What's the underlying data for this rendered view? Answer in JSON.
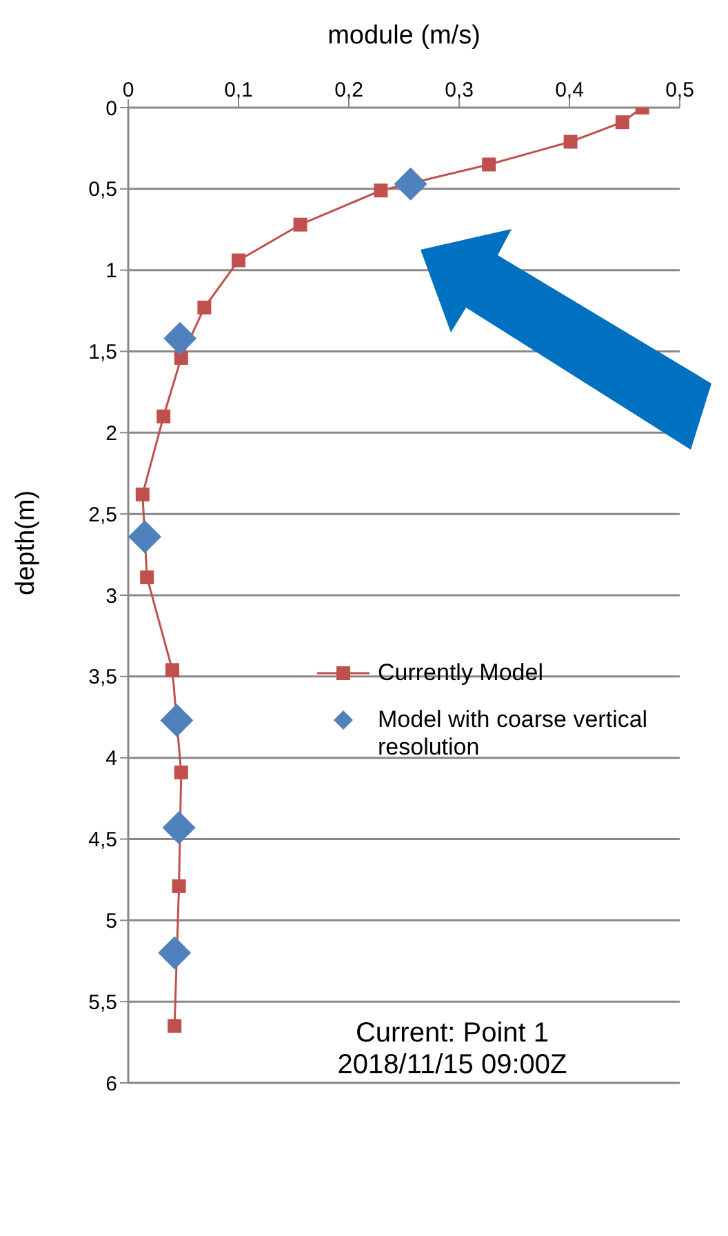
{
  "chart_data": {
    "type": "line",
    "xlabel": "module (m/s)",
    "ylabel": "depth(m)",
    "xlim": [
      0,
      0.5
    ],
    "xticks": [
      0,
      {
        "value": 0.1,
        "label": "0,1"
      },
      {
        "value": 0.2,
        "label": "0,2"
      },
      {
        "value": 0.3,
        "label": "0,3"
      },
      {
        "value": 0.4,
        "label": "0,4"
      },
      {
        "value": 0.5,
        "label": "0,5"
      }
    ],
    "ylim": [
      6,
      0
    ],
    "yticks": [
      0,
      {
        "value": 0.5,
        "label": "0,5"
      },
      1,
      {
        "value": 1.5,
        "label": "1,5"
      },
      2,
      {
        "value": 2.5,
        "label": "2,5"
      },
      3,
      {
        "value": 3.5,
        "label": "3,5"
      },
      4,
      {
        "value": 4.5,
        "label": "4,5"
      },
      5,
      {
        "value": 5.5,
        "label": "5,5"
      },
      6
    ],
    "grid": "y",
    "legend": "right",
    "series": [
      {
        "name": "Currently Model",
        "marker": "square",
        "color": "#c0504d",
        "x": [
          0.466,
          0.448,
          0.401,
          0.327,
          0.229,
          0.156,
          0.1,
          0.069,
          0.048,
          0.032,
          0.013,
          0.017,
          0.04,
          0.048,
          0.046,
          0.042
        ],
        "values": [
          0,
          0.09,
          0.21,
          0.35,
          0.51,
          0.72,
          0.94,
          1.23,
          1.54,
          1.9,
          2.38,
          2.89,
          3.46,
          4.09,
          4.79,
          5.65
        ]
      },
      {
        "name": "Model with coarse vertical resolution",
        "type": "scatter",
        "marker": "diamond",
        "color": "#4f81bd",
        "x": [
          0.256,
          0.047,
          0.015,
          0.044,
          0.046,
          0.042
        ],
        "values": [
          0.47,
          1.42,
          2.64,
          3.77,
          4.43,
          5.2
        ]
      }
    ],
    "annotations": [
      "Current: Point 1\n2018/11/15 09:00Z"
    ]
  }
}
